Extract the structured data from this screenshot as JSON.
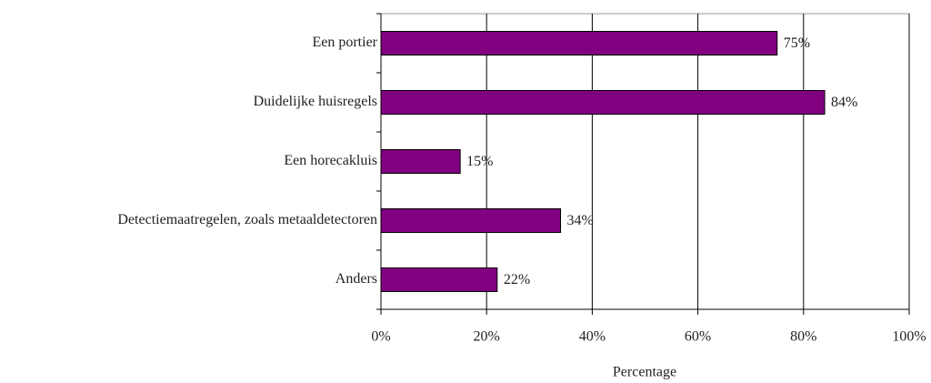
{
  "chart_data": {
    "type": "bar",
    "orientation": "horizontal",
    "categories": [
      "Een portier",
      "Duidelijke huisregels",
      "Een horecakluis",
      "Detectiemaatregelen, zoals metaaldetectoren",
      "Anders"
    ],
    "values": [
      75,
      84,
      15,
      34,
      22
    ],
    "value_labels": [
      "75%",
      "84%",
      "15%",
      "34%",
      "22%"
    ],
    "color": "#800080",
    "xlabel": "Percentage",
    "xlim": [
      0,
      100
    ],
    "xticks": [
      {
        "value": 0,
        "label": "0%"
      },
      {
        "value": 20,
        "label": "20%"
      },
      {
        "value": 40,
        "label": "40%"
      },
      {
        "value": 60,
        "label": "60%"
      },
      {
        "value": 80,
        "label": "80%"
      },
      {
        "value": 100,
        "label": "100%"
      }
    ],
    "grid": true
  }
}
